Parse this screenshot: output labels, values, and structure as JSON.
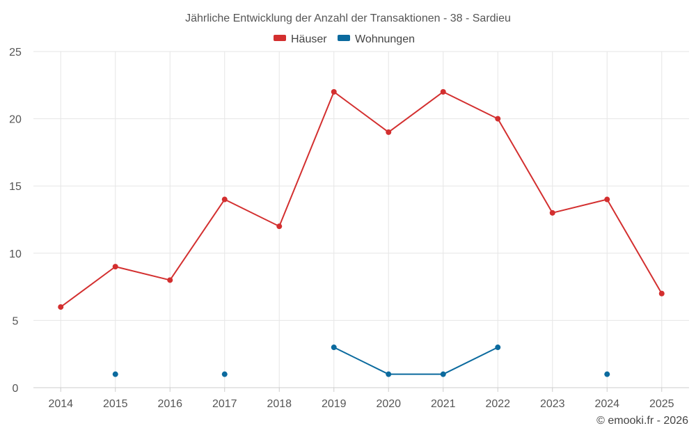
{
  "chart_data": {
    "type": "line",
    "title": "Jährliche Entwicklung der Anzahl der Transaktionen - 38 - Sardieu",
    "xlabel": "",
    "ylabel": "",
    "categories": [
      "2014",
      "2015",
      "2016",
      "2017",
      "2018",
      "2019",
      "2020",
      "2021",
      "2022",
      "2023",
      "2024",
      "2025"
    ],
    "ylim": [
      0,
      25
    ],
    "yticks": [
      0,
      5,
      10,
      15,
      20,
      25
    ],
    "grid": true,
    "legend_position": "top-center",
    "series": [
      {
        "name": "Häuser",
        "color": "#d32f2f",
        "values": [
          6,
          9,
          8,
          14,
          12,
          22,
          19,
          22,
          20,
          13,
          14,
          7
        ]
      },
      {
        "name": "Wohnungen",
        "color": "#0b6a9e",
        "values": [
          null,
          1,
          null,
          1,
          null,
          3,
          1,
          1,
          3,
          null,
          1,
          null
        ]
      }
    ]
  },
  "credit": "© emooki.fr - 2026"
}
